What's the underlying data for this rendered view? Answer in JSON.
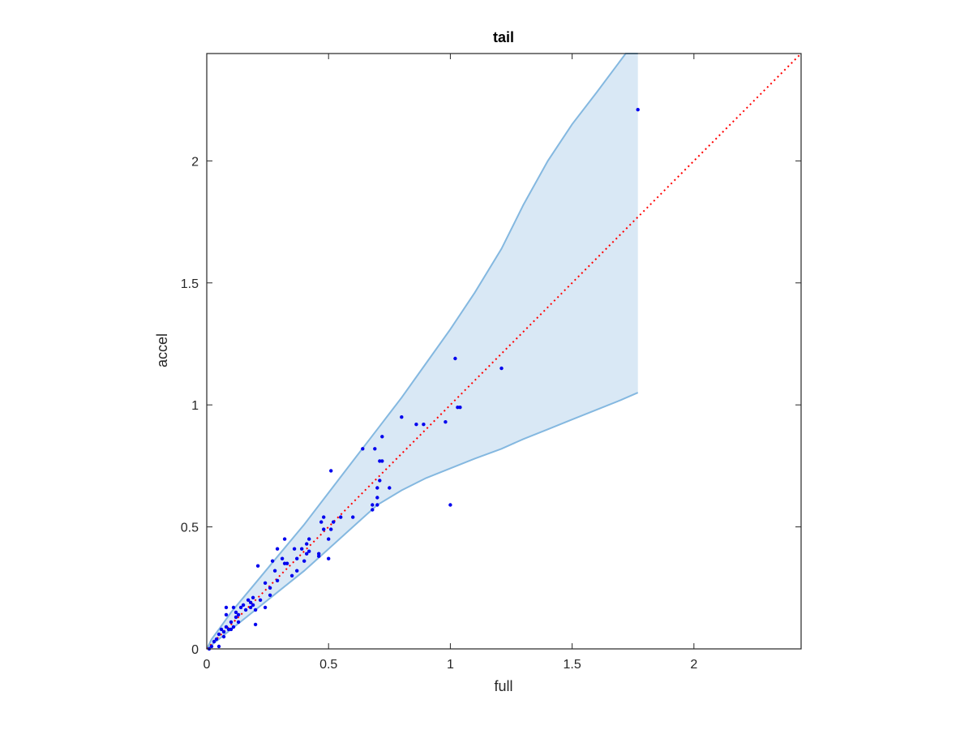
{
  "chart_data": {
    "type": "scatter",
    "title": "tail",
    "xlabel": "full",
    "ylabel": "accel",
    "xlim": [
      0,
      2.44
    ],
    "ylim": [
      0,
      2.44
    ],
    "xticks": [
      0,
      0.5,
      1,
      1.5,
      2
    ],
    "yticks": [
      0,
      0.5,
      1,
      1.5,
      2
    ],
    "xtick_labels": [
      "0",
      "0.5",
      "1",
      "1.5",
      "2"
    ],
    "ytick_labels": [
      "0",
      "0.5",
      "1",
      "1.5",
      "2"
    ],
    "grid": false,
    "legend": "none",
    "colors": {
      "points": "#0000ee",
      "reference_line": "#ff0000",
      "band_fill": "#d9e8f5",
      "band_edge": "#84b8e0",
      "axes": "#262626"
    },
    "band": {
      "upper": [
        [
          0,
          0
        ],
        [
          0.02,
          0.04
        ],
        [
          0.05,
          0.08
        ],
        [
          0.1,
          0.15
        ],
        [
          0.2,
          0.27
        ],
        [
          0.3,
          0.39
        ],
        [
          0.4,
          0.51
        ],
        [
          0.5,
          0.64
        ],
        [
          0.6,
          0.77
        ],
        [
          0.7,
          0.9
        ],
        [
          0.8,
          1.03
        ],
        [
          0.9,
          1.17
        ],
        [
          1.0,
          1.31
        ],
        [
          1.1,
          1.46
        ],
        [
          1.21,
          1.64
        ],
        [
          1.3,
          1.82
        ],
        [
          1.4,
          2.0
        ],
        [
          1.5,
          2.15
        ],
        [
          1.6,
          2.28
        ],
        [
          1.72,
          2.44
        ],
        [
          1.77,
          2.44
        ]
      ],
      "lower": [
        [
          0,
          0
        ],
        [
          0.05,
          0.04
        ],
        [
          0.1,
          0.08
        ],
        [
          0.2,
          0.16
        ],
        [
          0.3,
          0.24
        ],
        [
          0.4,
          0.32
        ],
        [
          0.5,
          0.41
        ],
        [
          0.6,
          0.5
        ],
        [
          0.7,
          0.59
        ],
        [
          0.8,
          0.65
        ],
        [
          0.9,
          0.7
        ],
        [
          1.0,
          0.74
        ],
        [
          1.1,
          0.78
        ],
        [
          1.21,
          0.82
        ],
        [
          1.3,
          0.86
        ],
        [
          1.4,
          0.9
        ],
        [
          1.5,
          0.94
        ],
        [
          1.6,
          0.98
        ],
        [
          1.7,
          1.02
        ],
        [
          1.77,
          1.05
        ]
      ]
    },
    "reference_line": [
      [
        0,
        0
      ],
      [
        2.44,
        2.44
      ]
    ],
    "points": [
      [
        0.01,
        0.0
      ],
      [
        0.02,
        0.01
      ],
      [
        0.03,
        0.03
      ],
      [
        0.04,
        0.04
      ],
      [
        0.05,
        0.01
      ],
      [
        0.05,
        0.06
      ],
      [
        0.06,
        0.08
      ],
      [
        0.07,
        0.07
      ],
      [
        0.07,
        0.05
      ],
      [
        0.08,
        0.09
      ],
      [
        0.08,
        0.14
      ],
      [
        0.08,
        0.17
      ],
      [
        0.09,
        0.08
      ],
      [
        0.1,
        0.11
      ],
      [
        0.1,
        0.08
      ],
      [
        0.11,
        0.17
      ],
      [
        0.11,
        0.09
      ],
      [
        0.12,
        0.13
      ],
      [
        0.12,
        0.15
      ],
      [
        0.13,
        0.14
      ],
      [
        0.13,
        0.11
      ],
      [
        0.14,
        0.17
      ],
      [
        0.15,
        0.18
      ],
      [
        0.16,
        0.16
      ],
      [
        0.17,
        0.2
      ],
      [
        0.18,
        0.19
      ],
      [
        0.18,
        0.17
      ],
      [
        0.19,
        0.18
      ],
      [
        0.19,
        0.21
      ],
      [
        0.2,
        0.1
      ],
      [
        0.2,
        0.16
      ],
      [
        0.21,
        0.34
      ],
      [
        0.22,
        0.2
      ],
      [
        0.24,
        0.17
      ],
      [
        0.24,
        0.27
      ],
      [
        0.26,
        0.25
      ],
      [
        0.26,
        0.22
      ],
      [
        0.27,
        0.36
      ],
      [
        0.28,
        0.32
      ],
      [
        0.29,
        0.28
      ],
      [
        0.29,
        0.41
      ],
      [
        0.31,
        0.37
      ],
      [
        0.32,
        0.45
      ],
      [
        0.32,
        0.35
      ],
      [
        0.33,
        0.35
      ],
      [
        0.35,
        0.3
      ],
      [
        0.36,
        0.41
      ],
      [
        0.37,
        0.32
      ],
      [
        0.37,
        0.37
      ],
      [
        0.39,
        0.41
      ],
      [
        0.4,
        0.36
      ],
      [
        0.41,
        0.39
      ],
      [
        0.41,
        0.43
      ],
      [
        0.42,
        0.45
      ],
      [
        0.42,
        0.4
      ],
      [
        0.46,
        0.38
      ],
      [
        0.46,
        0.39
      ],
      [
        0.47,
        0.52
      ],
      [
        0.48,
        0.49
      ],
      [
        0.48,
        0.54
      ],
      [
        0.5,
        0.45
      ],
      [
        0.5,
        0.37
      ],
      [
        0.51,
        0.73
      ],
      [
        0.51,
        0.49
      ],
      [
        0.52,
        0.52
      ],
      [
        0.55,
        0.54
      ],
      [
        0.6,
        0.54
      ],
      [
        0.64,
        0.82
      ],
      [
        0.68,
        0.57
      ],
      [
        0.68,
        0.59
      ],
      [
        0.69,
        0.82
      ],
      [
        0.7,
        0.66
      ],
      [
        0.7,
        0.62
      ],
      [
        0.7,
        0.59
      ],
      [
        0.71,
        0.69
      ],
      [
        0.71,
        0.77
      ],
      [
        0.72,
        0.77
      ],
      [
        0.72,
        0.87
      ],
      [
        0.75,
        0.66
      ],
      [
        0.8,
        0.95
      ],
      [
        0.86,
        0.92
      ],
      [
        0.89,
        0.92
      ],
      [
        0.98,
        0.93
      ],
      [
        1.0,
        0.59
      ],
      [
        1.02,
        1.19
      ],
      [
        1.03,
        0.99
      ],
      [
        1.04,
        0.99
      ],
      [
        1.21,
        1.15
      ],
      [
        1.77,
        2.21
      ]
    ]
  }
}
